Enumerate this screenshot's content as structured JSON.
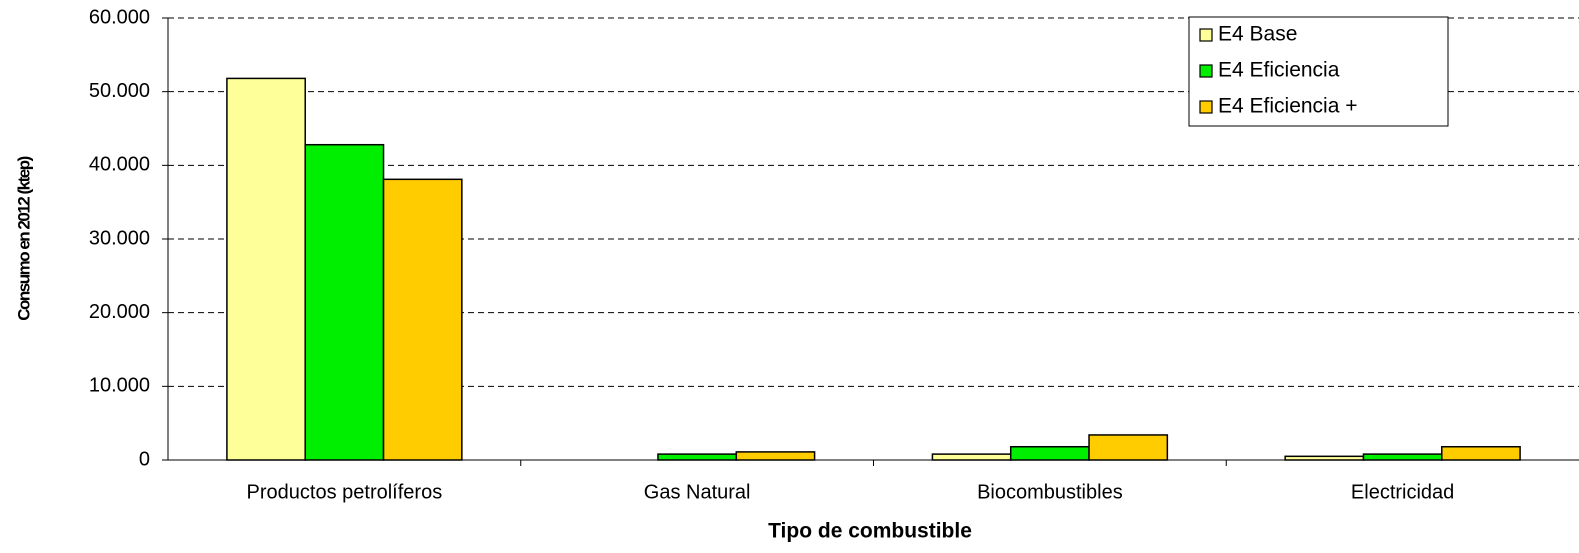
{
  "chart_data": {
    "type": "bar",
    "x_label": "Tipo de combustible",
    "y_label": "Consumo en 2012 (ktep)",
    "categories": [
      "Productos petrolíferos",
      "Gas Natural",
      "Biocombustibles",
      "Electricidad"
    ],
    "series": [
      {
        "name": "E4 Base",
        "color": "#ffff99",
        "values": [
          51800,
          0,
          800,
          500
        ]
      },
      {
        "name": "E4 Eficiencia",
        "color": "#00ee00",
        "values": [
          42800,
          800,
          1800,
          800
        ]
      },
      {
        "name": "E4 Eficiencia +",
        "color": "#ffcc00",
        "values": [
          38100,
          1100,
          3400,
          1800
        ]
      }
    ],
    "ylim": [
      0,
      60000
    ],
    "yticks": [
      0,
      {
        "value": 10000,
        "label": "10.000"
      },
      {
        "value": 20000,
        "label": "20.000"
      },
      {
        "value": 30000,
        "label": "30.000"
      },
      {
        "value": 40000,
        "label": "40.000"
      },
      {
        "value": 50000,
        "label": "50.000"
      },
      {
        "value": 60000,
        "label": "60.000"
      }
    ],
    "grid": true,
    "legend": "upper right"
  }
}
